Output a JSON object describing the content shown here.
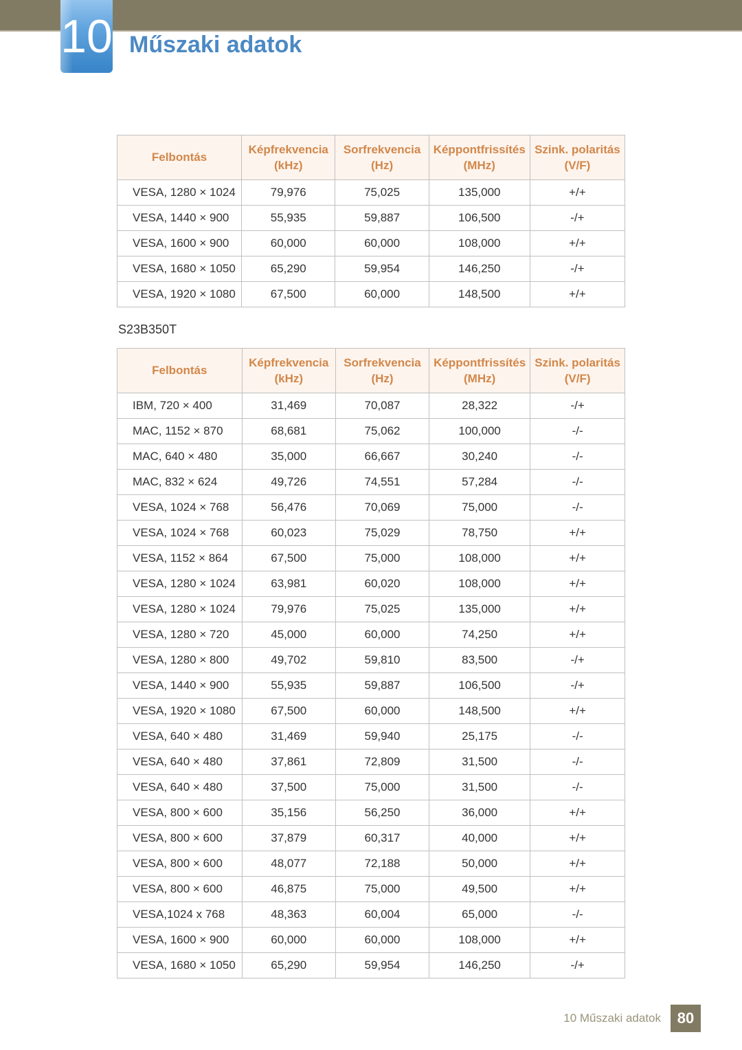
{
  "colors": {
    "top_bar": "#827b63",
    "badge_gradient_top": "#93c3ed",
    "badge_gradient_bottom": "#3a86c9",
    "title_color": "#4c89c4",
    "header_bg": "#fdf4ed",
    "header_text": "#d2874a",
    "border": "#c0c0c0",
    "body_text": "#333333",
    "footer_text": "#9a947b"
  },
  "chapter_number": "10",
  "page_title": "Műszaki adatok",
  "model_label": "S23B350T",
  "table1": {
    "columns": [
      "Felbontás",
      "Képfrekvencia (kHz)",
      "Sorfrekvencia (Hz)",
      "Képpontfrissítés (MHz)",
      "Szink. polaritás (V/F)"
    ],
    "rows": [
      [
        "VESA, 1280 × 1024",
        "79,976",
        "75,025",
        "135,000",
        "+/+"
      ],
      [
        "VESA, 1440 × 900",
        "55,935",
        "59,887",
        "106,500",
        "-/+"
      ],
      [
        "VESA, 1600 × 900",
        "60,000",
        "60,000",
        "108,000",
        "+/+"
      ],
      [
        "VESA, 1680 × 1050",
        "65,290",
        "59,954",
        "146,250",
        "-/+"
      ],
      [
        "VESA, 1920 × 1080",
        "67,500",
        "60,000",
        "148,500",
        "+/+"
      ]
    ]
  },
  "table2": {
    "columns": [
      "Felbontás",
      "Képfrekvencia (kHz)",
      "Sorfrekvencia (Hz)",
      "Képpontfrissítés (MHz)",
      "Szink. polaritás (V/F)"
    ],
    "rows": [
      [
        "IBM, 720 × 400",
        "31,469",
        "70,087",
        "28,322",
        "-/+"
      ],
      [
        "MAC, 1152 × 870",
        "68,681",
        "75,062",
        "100,000",
        "-/-"
      ],
      [
        "MAC, 640 × 480",
        "35,000",
        "66,667",
        "30,240",
        "-/-"
      ],
      [
        "MAC, 832 × 624",
        "49,726",
        "74,551",
        "57,284",
        "-/-"
      ],
      [
        "VESA, 1024 × 768",
        "56,476",
        "70,069",
        "75,000",
        "-/-"
      ],
      [
        "VESA, 1024 × 768",
        "60,023",
        "75,029",
        "78,750",
        "+/+"
      ],
      [
        "VESA, 1152 × 864",
        "67,500",
        "75,000",
        "108,000",
        "+/+"
      ],
      [
        "VESA, 1280 × 1024",
        "63,981",
        "60,020",
        "108,000",
        "+/+"
      ],
      [
        "VESA, 1280 × 1024",
        "79,976",
        "75,025",
        "135,000",
        "+/+"
      ],
      [
        "VESA, 1280 × 720",
        "45,000",
        "60,000",
        "74,250",
        "+/+"
      ],
      [
        "VESA, 1280 × 800",
        "49,702",
        "59,810",
        "83,500",
        "-/+"
      ],
      [
        "VESA, 1440 × 900",
        "55,935",
        "59,887",
        "106,500",
        "-/+"
      ],
      [
        "VESA, 1920 × 1080",
        "67,500",
        "60,000",
        "148,500",
        "+/+"
      ],
      [
        "VESA, 640 × 480",
        "31,469",
        "59,940",
        "25,175",
        "-/-"
      ],
      [
        "VESA, 640 × 480",
        "37,861",
        "72,809",
        "31,500",
        "-/-"
      ],
      [
        "VESA, 640 × 480",
        "37,500",
        "75,000",
        "31,500",
        "-/-"
      ],
      [
        "VESA, 800 × 600",
        "35,156",
        "56,250",
        "36,000",
        "+/+"
      ],
      [
        "VESA, 800 × 600",
        "37,879",
        "60,317",
        "40,000",
        "+/+"
      ],
      [
        "VESA, 800 × 600",
        "48,077",
        "72,188",
        "50,000",
        "+/+"
      ],
      [
        "VESA, 800 × 600",
        "46,875",
        "75,000",
        "49,500",
        "+/+"
      ],
      [
        "VESA,1024 x 768",
        "48,363",
        "60,004",
        "65,000",
        "-/-"
      ],
      [
        "VESA, 1600 × 900",
        "60,000",
        "60,000",
        "108,000",
        "+/+"
      ],
      [
        "VESA, 1680 × 1050",
        "65,290",
        "59,954",
        "146,250",
        "-/+"
      ]
    ]
  },
  "footer": {
    "section_label": "10 Műszaki adatok",
    "page_number": "80"
  }
}
